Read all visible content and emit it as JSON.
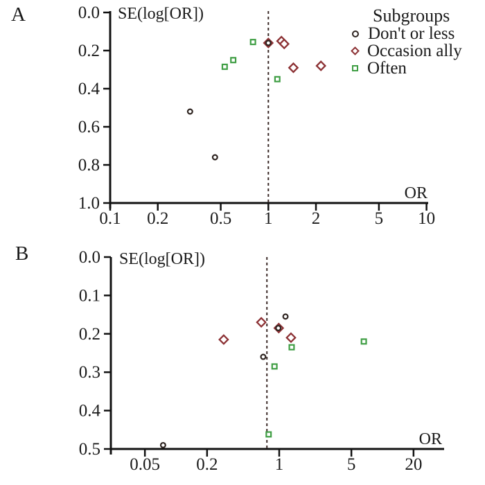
{
  "figure": {
    "background": "#ffffff",
    "text_color": "#1a1a1a",
    "axis_color": "#111111",
    "ref_line_color": "#3b2a28"
  },
  "legend": {
    "title": "Subgroups",
    "items": [
      {
        "label": "Don't or less",
        "marker": "circle-icon",
        "color": "#2e2420"
      },
      {
        "label": "Occasion ally",
        "marker": "diamond-icon",
        "color": "#8c3134"
      },
      {
        "label": "Often",
        "marker": "square-icon",
        "color": "#3f9e44"
      }
    ]
  },
  "chart_data": [
    {
      "type": "scatter",
      "panel_label": "A",
      "title": "",
      "xlabel": "OR",
      "ylabel": "SE(log[OR])",
      "x_scale": "log",
      "y_inverted": true,
      "x_range": [
        0.1,
        10
      ],
      "y_range": [
        0.0,
        1.0
      ],
      "x_ticks": [
        "0.1",
        "0.2",
        "0.5",
        "1",
        "2",
        "5",
        "10"
      ],
      "y_ticks": [
        "0.0",
        "0.2",
        "0.4",
        "0.6",
        "0.8",
        "1.0"
      ],
      "ref_line_or": 1.0,
      "grid": false,
      "series": [
        {
          "name": "Don't or less",
          "marker": "circle",
          "color": "#2e2420",
          "points": [
            {
              "or": 1.0,
              "se": 0.16
            },
            {
              "or": 0.32,
              "se": 0.52
            },
            {
              "or": 0.46,
              "se": 0.76
            }
          ]
        },
        {
          "name": "Occasion ally",
          "marker": "diamond",
          "color": "#8c3134",
          "points": [
            {
              "or": 1.0,
              "se": 0.16
            },
            {
              "or": 1.21,
              "se": 0.15
            },
            {
              "or": 1.26,
              "se": 0.165
            },
            {
              "or": 1.44,
              "se": 0.29
            },
            {
              "or": 2.15,
              "se": 0.28
            }
          ]
        },
        {
          "name": "Often",
          "marker": "square",
          "color": "#3f9e44",
          "points": [
            {
              "or": 0.8,
              "se": 0.155
            },
            {
              "or": 0.6,
              "se": 0.25
            },
            {
              "or": 0.53,
              "se": 0.285
            },
            {
              "or": 1.14,
              "se": 0.35
            }
          ]
        }
      ]
    },
    {
      "type": "scatter",
      "panel_label": "B",
      "title": "",
      "xlabel": "OR",
      "ylabel": "SE(log[OR])",
      "x_scale": "log",
      "y_inverted": true,
      "x_range": [
        0.02,
        30
      ],
      "y_range": [
        0.0,
        0.5
      ],
      "x_ticks": [
        "0.05",
        "0.2",
        "1",
        "5",
        "20"
      ],
      "y_ticks": [
        "0.0",
        "0.1",
        "0.2",
        "0.3",
        "0.4",
        "0.5"
      ],
      "ref_line_or": 0.76,
      "grid": false,
      "series": [
        {
          "name": "Don't or less",
          "marker": "circle",
          "color": "#2e2420",
          "points": [
            {
              "or": 0.075,
              "se": 0.49
            },
            {
              "or": 0.7,
              "se": 0.26
            },
            {
              "or": 0.98,
              "se": 0.185
            },
            {
              "or": 1.15,
              "se": 0.155
            }
          ]
        },
        {
          "name": "Occasion ally",
          "marker": "diamond",
          "color": "#8c3134",
          "points": [
            {
              "or": 0.29,
              "se": 0.215
            },
            {
              "or": 0.67,
              "se": 0.17
            },
            {
              "or": 0.99,
              "se": 0.185
            },
            {
              "or": 1.3,
              "se": 0.21
            }
          ]
        },
        {
          "name": "Often",
          "marker": "square",
          "color": "#3f9e44",
          "points": [
            {
              "or": 0.79,
              "se": 0.462
            },
            {
              "or": 0.9,
              "se": 0.285
            },
            {
              "or": 1.32,
              "se": 0.235
            },
            {
              "or": 6.6,
              "se": 0.22
            }
          ]
        }
      ]
    }
  ]
}
